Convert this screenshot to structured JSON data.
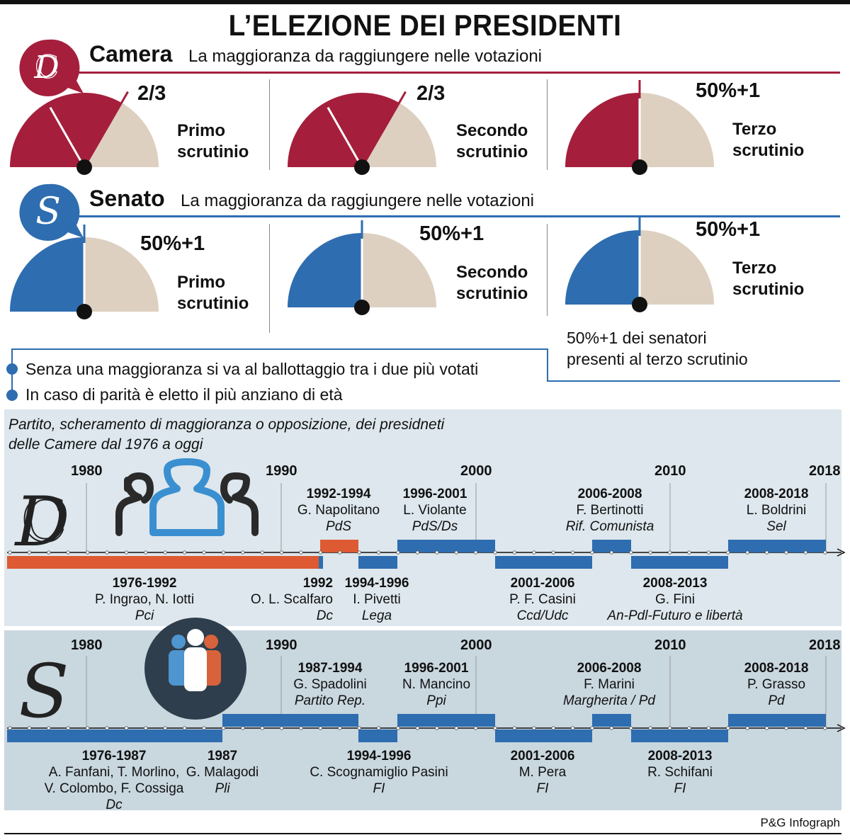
{
  "title": "L’ELEZIONE DEI PRESIDENTI",
  "colors": {
    "camera": "#a51f3d",
    "senato": "#2e6db0",
    "neutral": "#ddd0c0",
    "pd_red": "#dd5a32"
  },
  "camera": {
    "name": "Camera",
    "subtitle": "La maggioranza da raggiungere nelle votazioni",
    "gauges": [
      {
        "majority": "2/3",
        "label1": "Primo",
        "label2": "scrutinio",
        "fraction": 0.667
      },
      {
        "majority": "2/3",
        "label1": "Secondo",
        "label2": "scrutinio",
        "fraction": 0.667
      },
      {
        "majority": "50%+1",
        "label1": "Terzo",
        "label2": "scrutinio",
        "fraction": 0.5
      }
    ]
  },
  "senato": {
    "name": "Senato",
    "subtitle": "La maggioranza da raggiungere nelle votazioni",
    "gauges": [
      {
        "majority": "50%+1",
        "label1": "Primo",
        "label2": "scrutinio",
        "fraction": 0.5
      },
      {
        "majority": "50%+1",
        "label1": "Secondo",
        "label2": "scrutinio",
        "fraction": 0.5
      },
      {
        "majority": "50%+1",
        "label1": "Terzo",
        "label2": "scrutinio",
        "fraction": 0.5
      }
    ],
    "note_line1": "50%+1 dei senatori",
    "note_line2": "presenti al terzo scrutinio"
  },
  "bullets": [
    "Senza una maggioranza si va al ballottaggio tra i due più votati",
    "In caso di parità è eletto il più anziano di età"
  ],
  "timeline_title_line1": "Partito, scheramento di maggioranza o opposizione, dei presidneti",
  "timeline_title_line2": "delle Camere dal 1976 a oggi",
  "years": [
    "1980",
    "1990",
    "2000",
    "2010",
    "2018"
  ],
  "camera_timeline": {
    "above": [
      {
        "period": "1992-1994",
        "name": "G. Napolitano",
        "party": "PdS"
      },
      {
        "period": "1996-2001",
        "name": "L. Violante",
        "party": "PdS/Ds"
      },
      {
        "period": "2006-2008",
        "name": "F. Bertinotti",
        "party": "Rif. Comunista"
      },
      {
        "period": "2008-2018",
        "name": "L. Boldrini",
        "party": "Sel"
      }
    ],
    "below": [
      {
        "period": "1976-1992",
        "name": "P. Ingrao, N. Iotti",
        "party": "Pci"
      },
      {
        "period": "1992",
        "name": "O. L. Scalfaro",
        "party": "Dc"
      },
      {
        "period": "1994-1996",
        "name": "I. Pivetti",
        "party": "Lega"
      },
      {
        "period": "2001-2006",
        "name": "P. F. Casini",
        "party": "Ccd/Udc"
      },
      {
        "period": "2008-2013",
        "name": "G. Fini",
        "party": "An-Pdl-Futuro e libertà"
      }
    ]
  },
  "senato_timeline": {
    "above": [
      {
        "period": "1987-1994",
        "name": "G. Spadolini",
        "party": "Partito Rep."
      },
      {
        "period": "1996-2001",
        "name": "N. Mancino",
        "party": "Ppi"
      },
      {
        "period": "2006-2008",
        "name": "F. Marini",
        "party": "Margherita / Pd"
      },
      {
        "period": "2008-2018",
        "name": "P. Grasso",
        "party": "Pd"
      }
    ],
    "below_first": {
      "period": "1976-1987",
      "name1": "A. Fanfani, T. Morlino,",
      "name2": "V. Colombo, F. Cossiga",
      "party": "Dc"
    },
    "below": [
      {
        "period": "1987",
        "name": "G. Malagodi",
        "party": "Pli"
      },
      {
        "period": "1994-1996",
        "name": "C. Scognamiglio Pasini",
        "party": "FI"
      },
      {
        "period": "2001-2006",
        "name": "M. Pera",
        "party": "FI"
      },
      {
        "period": "2008-2013",
        "name": "R. Schifani",
        "party": "FI"
      }
    ]
  },
  "credit": "P&G Infograph"
}
